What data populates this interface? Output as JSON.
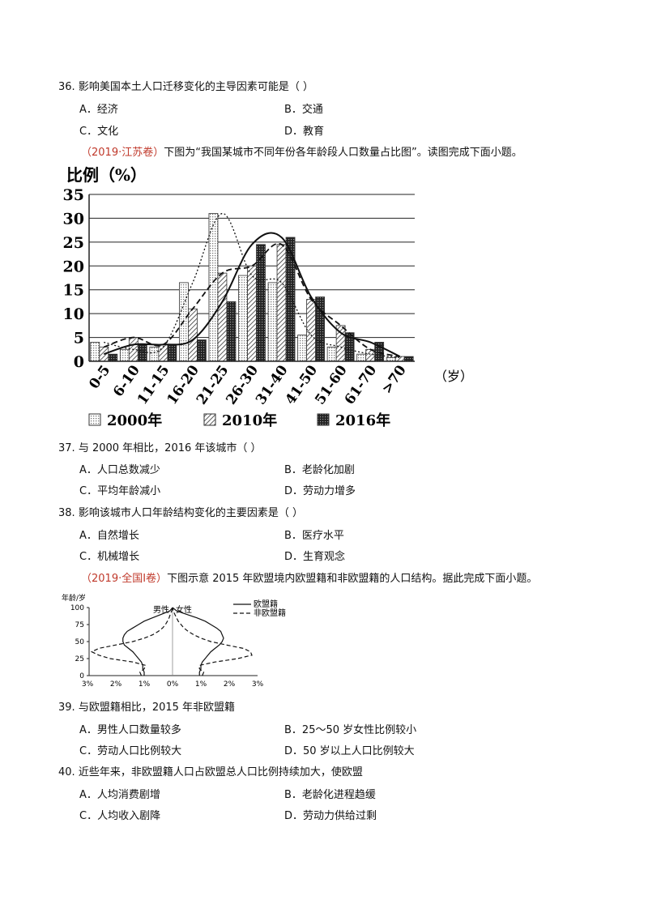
{
  "questions": [
    {
      "num": "36.",
      "stem": "影响美国本土人口迁移变化的主导因素可能是（    ）",
      "options": [
        "A．经济",
        "B．交通",
        "C．文化",
        "D．教育"
      ]
    },
    {
      "num": "37.",
      "stem": "与 2000 年相比，2016 年该城市（    ）",
      "options": [
        "A．人口总数减少",
        "B．老龄化加剧",
        "C．平均年龄减小",
        "D．劳动力增多"
      ]
    },
    {
      "num": "38.",
      "stem": "影响该城市人口年龄结构变化的主要因素是（    ）",
      "options": [
        "A．自然增长",
        "B．医疗水平",
        "C．机械增长",
        "D．生育观念"
      ]
    },
    {
      "num": "39.",
      "stem": "与欧盟籍相比，2015 年非欧盟籍",
      "options": [
        "A．男性人口数量较多",
        "B．25～50 岁女性比例较小",
        "C．劳动人口比例较大",
        "D．50 岁以上人口比例较大"
      ]
    },
    {
      "num": "40.",
      "stem": "近些年来，非欧盟籍人口占欧盟总人口比例持续加大，使欧盟",
      "options": [
        "A．人均消费剧增",
        "B．老龄化进程趋缓",
        "C．人均收入剧降",
        "D．劳动力供给过剩"
      ]
    }
  ],
  "intro1": {
    "source": "（2019·江苏卷）",
    "text": "下图为“我国某城市不同年份各年龄段人口数量占比图”。读图完成下面小题。"
  },
  "intro2": {
    "source": "（2019·全国Ⅰ卷）",
    "text": "下图示意 2015 年欧盟境内欧盟籍和非欧盟籍的人口结构。据此完成下面小题。"
  },
  "chart_data": [
    {
      "type": "bar",
      "title": "比例（%）",
      "xlabel": "（岁）",
      "categories": [
        "0-5",
        "6-10",
        "11-15",
        "16-20",
        "21-25",
        "26-30",
        "31-40",
        "41-50",
        "51-60",
        "61-70",
        ">70"
      ],
      "series": [
        {
          "name": "2000年",
          "values": [
            4,
            2.5,
            3,
            16.5,
            31,
            18,
            16.5,
            5.5,
            3,
            1.5,
            0.8
          ],
          "pattern": "dots"
        },
        {
          "name": "2010年",
          "values": [
            3,
            5,
            3.5,
            11,
            18.5,
            20,
            24.5,
            13,
            7.5,
            2.5,
            1
          ],
          "pattern": "hatch"
        },
        {
          "name": "2016年",
          "values": [
            1.5,
            3.5,
            3.5,
            4.5,
            12.5,
            24.5,
            26,
            13.5,
            6,
            4,
            1
          ],
          "pattern": "grid"
        }
      ],
      "ylim": [
        0,
        35
      ],
      "yticks": [
        0,
        5,
        10,
        15,
        20,
        25,
        30,
        35
      ],
      "grid": true,
      "legend": "bottom"
    },
    {
      "type": "line",
      "ylabel": "年龄/岁",
      "yticks": [
        0,
        25,
        50,
        75,
        100
      ],
      "xticks": [
        "3%",
        "2%",
        "1%",
        "0%",
        "1%",
        "2%",
        "3%"
      ],
      "side_labels": [
        "男性",
        "女性"
      ],
      "series": [
        {
          "name": "欧盟籍",
          "style": "solid",
          "male": [
            [
              0,
              1.0
            ],
            [
              5,
              1.0
            ],
            [
              10,
              1.05
            ],
            [
              15,
              1.05
            ],
            [
              20,
              1.1
            ],
            [
              25,
              1.2
            ],
            [
              30,
              1.3
            ],
            [
              35,
              1.4
            ],
            [
              40,
              1.55
            ],
            [
              45,
              1.7
            ],
            [
              50,
              1.75
            ],
            [
              55,
              1.75
            ],
            [
              60,
              1.7
            ],
            [
              65,
              1.6
            ],
            [
              70,
              1.4
            ],
            [
              75,
              1.2
            ],
            [
              80,
              1.0
            ],
            [
              85,
              0.7
            ],
            [
              90,
              0.4
            ],
            [
              95,
              0.1
            ],
            [
              100,
              0
            ]
          ],
          "female": [
            [
              0,
              0.95
            ],
            [
              5,
              0.95
            ],
            [
              10,
              1.0
            ],
            [
              15,
              1.0
            ],
            [
              20,
              1.05
            ],
            [
              25,
              1.15
            ],
            [
              30,
              1.25
            ],
            [
              35,
              1.35
            ],
            [
              40,
              1.5
            ],
            [
              45,
              1.65
            ],
            [
              50,
              1.75
            ],
            [
              55,
              1.8
            ],
            [
              60,
              1.75
            ],
            [
              65,
              1.7
            ],
            [
              70,
              1.55
            ],
            [
              75,
              1.35
            ],
            [
              80,
              1.15
            ],
            [
              85,
              0.85
            ],
            [
              90,
              0.5
            ],
            [
              95,
              0.15
            ],
            [
              100,
              0
            ]
          ]
        },
        {
          "name": "非欧盟籍",
          "style": "dashed",
          "male": [
            [
              0,
              1.1
            ],
            [
              5,
              1.15
            ],
            [
              10,
              1.0
            ],
            [
              15,
              0.95
            ],
            [
              20,
              1.4
            ],
            [
              25,
              2.2
            ],
            [
              30,
              2.6
            ],
            [
              35,
              2.85
            ],
            [
              40,
              2.6
            ],
            [
              45,
              2.0
            ],
            [
              50,
              1.4
            ],
            [
              55,
              1.0
            ],
            [
              60,
              0.7
            ],
            [
              65,
              0.5
            ],
            [
              70,
              0.35
            ],
            [
              75,
              0.25
            ],
            [
              80,
              0.18
            ],
            [
              85,
              0.12
            ],
            [
              90,
              0.08
            ],
            [
              95,
              0.03
            ],
            [
              100,
              0
            ]
          ],
          "female": [
            [
              0,
              1.05
            ],
            [
              5,
              1.1
            ],
            [
              10,
              0.95
            ],
            [
              15,
              0.95
            ],
            [
              20,
              1.5
            ],
            [
              25,
              2.3
            ],
            [
              30,
              2.8
            ],
            [
              35,
              2.75
            ],
            [
              40,
              2.5
            ],
            [
              45,
              1.9
            ],
            [
              50,
              1.35
            ],
            [
              55,
              1.0
            ],
            [
              60,
              0.75
            ],
            [
              65,
              0.55
            ],
            [
              70,
              0.4
            ],
            [
              75,
              0.3
            ],
            [
              80,
              0.2
            ],
            [
              85,
              0.14
            ],
            [
              90,
              0.08
            ],
            [
              95,
              0.03
            ],
            [
              100,
              0
            ]
          ]
        }
      ]
    }
  ]
}
